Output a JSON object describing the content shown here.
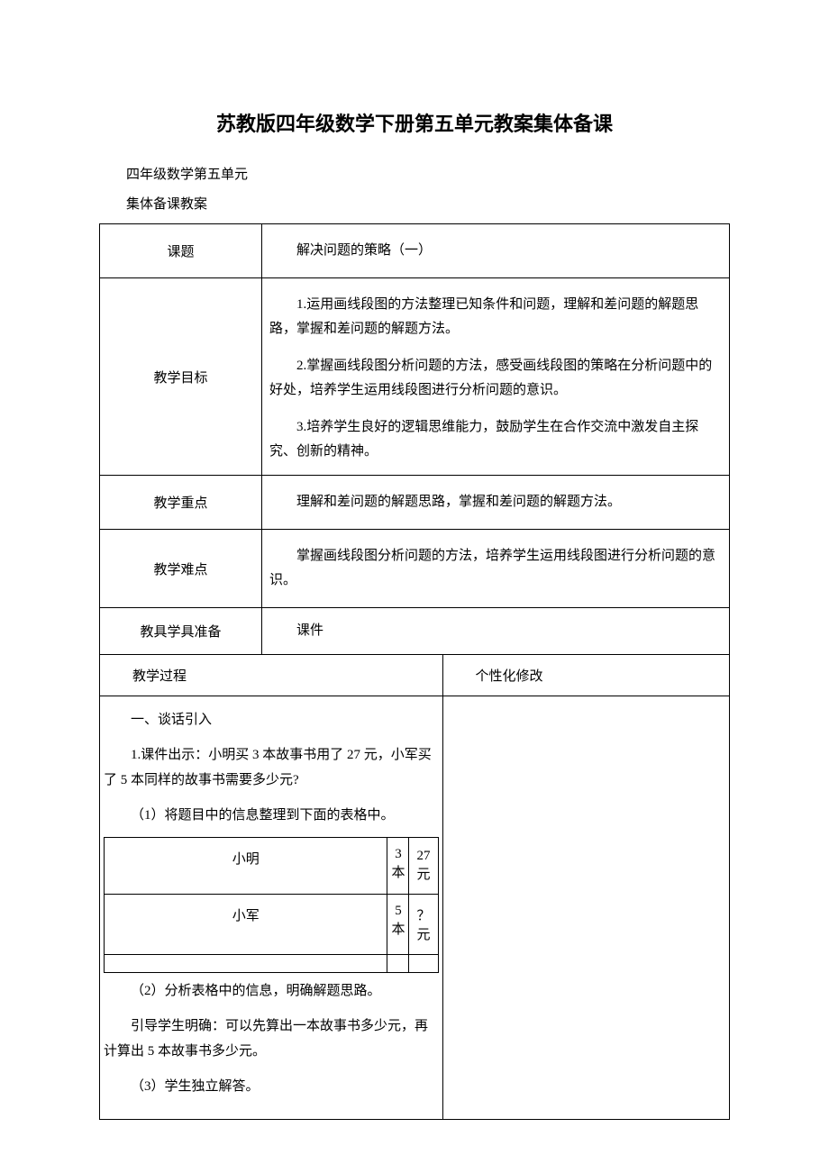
{
  "title": "苏教版四年级数学下册第五单元教案集体备课",
  "subtitle1": "四年级数学第五单元",
  "subtitle2": "集体备课教案",
  "rows": {
    "topic": {
      "label": "课题",
      "value": "解决问题的策略（一）"
    },
    "objective": {
      "label": "教学目标",
      "p1": "1.运用画线段图的方法整理已知条件和问题，理解和差问题的解题思路，掌握和差问题的解题方法。",
      "p2": "2.掌握画线段图分析问题的方法，感受画线段图的策略在分析问题中的好处，培养学生运用线段图进行分析问题的意识。",
      "p3": "3.培养学生良好的逻辑思维能力，鼓励学生在合作交流中激发自主探究、创新的精神。"
    },
    "keypoint": {
      "label": "教学重点",
      "value": "理解和差问题的解题思路，掌握和差问题的解题方法。"
    },
    "difficulty": {
      "label": "教学难点",
      "value": "掌握画线段图分析问题的方法，培养学生运用线段图进行分析问题的意识。"
    },
    "tools": {
      "label": "教具学具准备",
      "value": "课件"
    },
    "process": {
      "label": "教学过程",
      "mod": "个性化修改"
    }
  },
  "process_content": {
    "s1": "一、谈话引入",
    "s2": "1.课件出示：小明买 3 本故事书用了 27 元，小军买了 5 本同样的故事书需要多少元?",
    "s3": "（1）将题目中的信息整理到下面的表格中。",
    "s4": "（2）分析表格中的信息，明确解题思路。",
    "s5": "引导学生明确：可以先算出一本故事书多少元，再计算出 5 本故事书多少元。",
    "s6": "（3）学生独立解答。"
  },
  "inner_table": {
    "r1c1": "小明",
    "r1c2": "3 本",
    "r1c3": "27 元",
    "r2c1": "小军",
    "r2c2": "5 本",
    "r2c3": "？元"
  },
  "colors": {
    "text": "#000000",
    "border": "#000000",
    "background": "#ffffff"
  }
}
